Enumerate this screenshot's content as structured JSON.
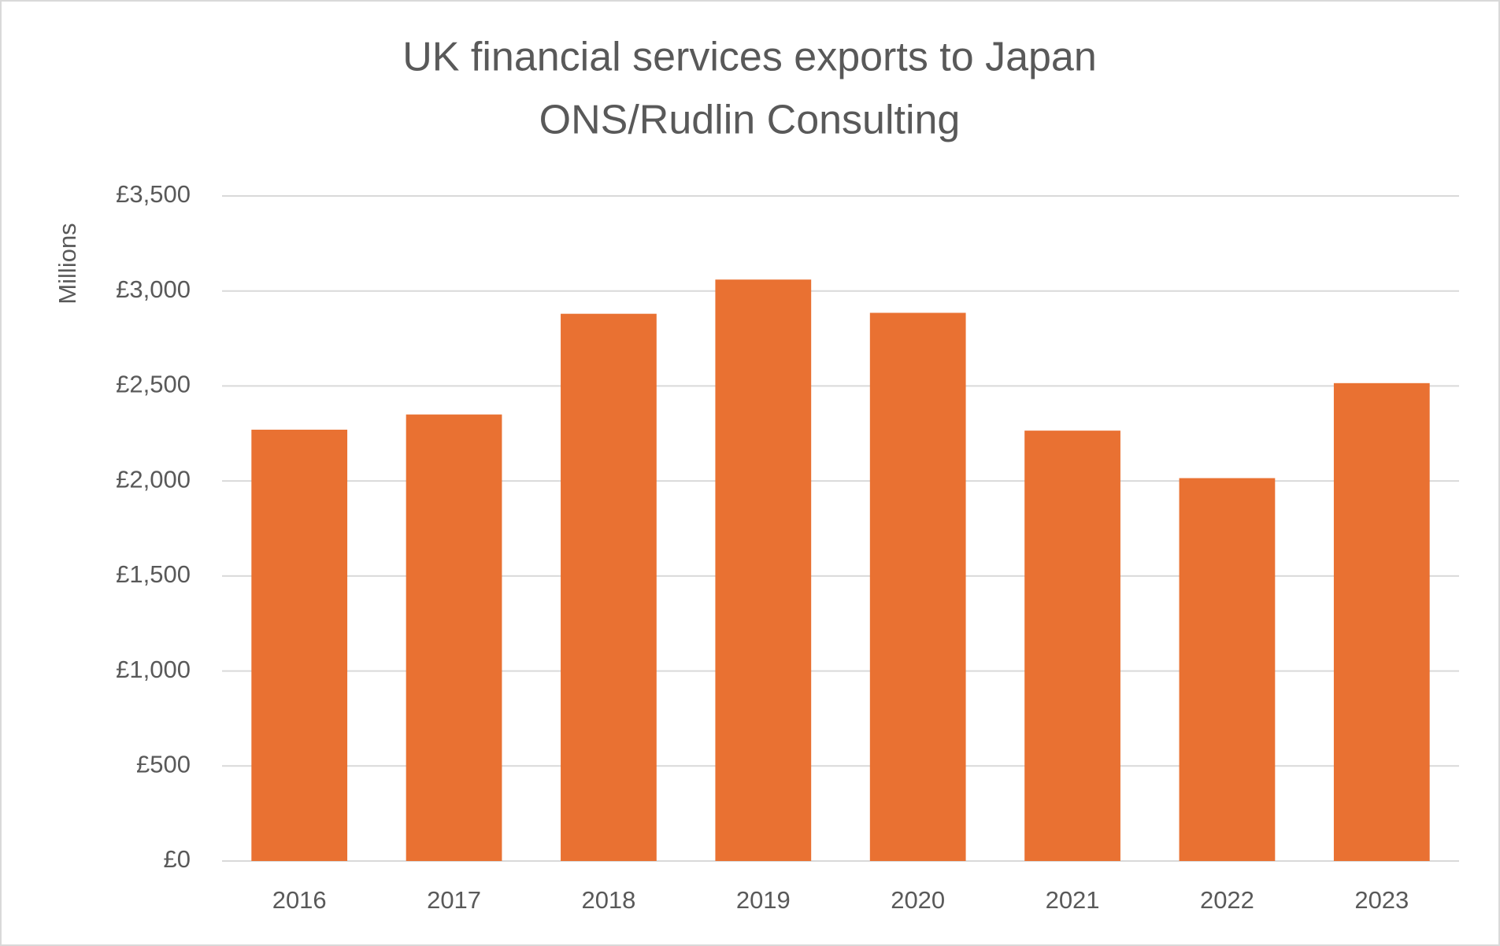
{
  "chart_data": {
    "type": "bar",
    "title": "UK financial services exports to Japan",
    "subtitle": "ONS/Rudlin Consulting",
    "y_label": "Millions",
    "categories": [
      "2016",
      "2017",
      "2018",
      "2019",
      "2020",
      "2021",
      "2022",
      "2023"
    ],
    "values": [
      2270,
      2350,
      2880,
      3060,
      2885,
      2265,
      2015,
      2515
    ],
    "color": "#e97132",
    "ylim": [
      0,
      3500
    ],
    "yticks": [
      {
        "value": 0,
        "label": "£0"
      },
      {
        "value": 500,
        "label": "£500"
      },
      {
        "value": 1000,
        "label": "£1,000"
      },
      {
        "value": 1500,
        "label": "£1,500"
      },
      {
        "value": 2000,
        "label": "£2,000"
      },
      {
        "value": 2500,
        "label": "£2,500"
      },
      {
        "value": 3000,
        "label": "£3,000"
      },
      {
        "value": 3500,
        "label": "£3,500"
      }
    ],
    "grid": true
  }
}
